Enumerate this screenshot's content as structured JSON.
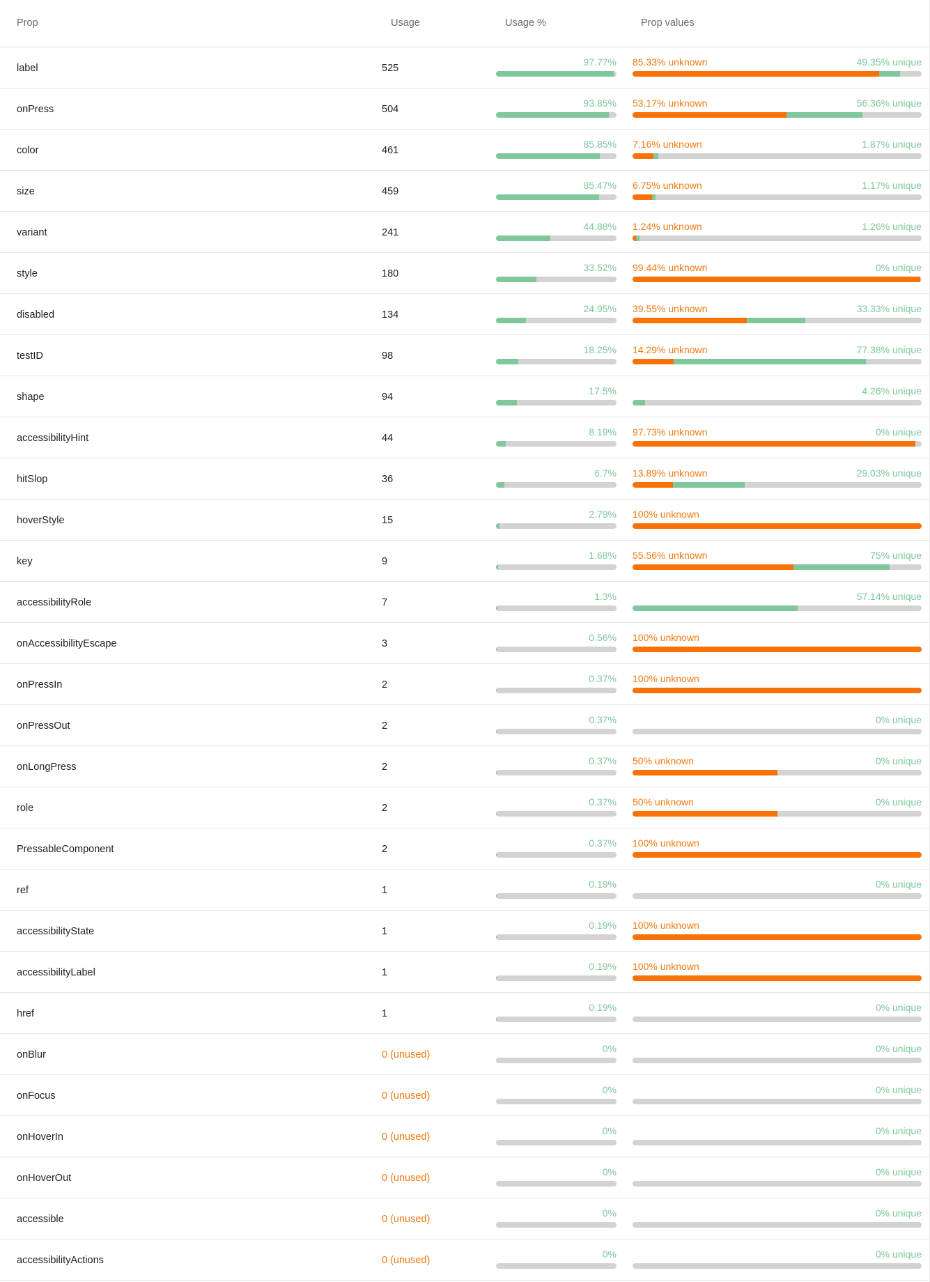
{
  "colors": {
    "usage_fill": "#80c89c",
    "usage_label": "#7cc89a",
    "unknown": "#f97107",
    "unique": "#80c89c",
    "track": "#d3d3d3",
    "unused_text": "#f47a11"
  },
  "header": {
    "prop": "Prop",
    "usage": "Usage",
    "usage_pct": "Usage %",
    "prop_values": "Prop values"
  },
  "rows": [
    {
      "name": "label",
      "usage": "525",
      "usage_pct": 97.77,
      "usage_pct_label": "97.77%",
      "unknown": 85.33,
      "unknown_label": "85.33% unknown",
      "unique": 49.35,
      "unique_label": "49.35% unique"
    },
    {
      "name": "onPress",
      "usage": "504",
      "usage_pct": 93.85,
      "usage_pct_label": "93.85%",
      "unknown": 53.17,
      "unknown_label": "53.17% unknown",
      "unique": 56.36,
      "unique_label": "56.36% unique"
    },
    {
      "name": "color",
      "usage": "461",
      "usage_pct": 85.85,
      "usage_pct_label": "85.85%",
      "unknown": 7.16,
      "unknown_label": "7.16% unknown",
      "unique": 1.87,
      "unique_label": "1.87% unique"
    },
    {
      "name": "size",
      "usage": "459",
      "usage_pct": 85.47,
      "usage_pct_label": "85.47%",
      "unknown": 6.75,
      "unknown_label": "6.75% unknown",
      "unique": 1.17,
      "unique_label": "1.17% unique"
    },
    {
      "name": "variant",
      "usage": "241",
      "usage_pct": 44.88,
      "usage_pct_label": "44.88%",
      "unknown": 1.24,
      "unknown_label": "1.24% unknown",
      "unique": 1.26,
      "unique_label": "1.26% unique"
    },
    {
      "name": "style",
      "usage": "180",
      "usage_pct": 33.52,
      "usage_pct_label": "33.52%",
      "unknown": 99.44,
      "unknown_label": "99.44% unknown",
      "unique": 0,
      "unique_label": "0% unique"
    },
    {
      "name": "disabled",
      "usage": "134",
      "usage_pct": 24.95,
      "usage_pct_label": "24.95%",
      "unknown": 39.55,
      "unknown_label": "39.55% unknown",
      "unique": 33.33,
      "unique_label": "33.33% unique"
    },
    {
      "name": "testID",
      "usage": "98",
      "usage_pct": 18.25,
      "usage_pct_label": "18.25%",
      "unknown": 14.29,
      "unknown_label": "14.29% unknown",
      "unique": 77.38,
      "unique_label": "77.38% unique"
    },
    {
      "name": "shape",
      "usage": "94",
      "usage_pct": 17.5,
      "usage_pct_label": "17.5%",
      "unknown": 0,
      "unknown_label": "",
      "unique": 4.26,
      "unique_label": "4.26% unique"
    },
    {
      "name": "accessibilityHint",
      "usage": "44",
      "usage_pct": 8.19,
      "usage_pct_label": "8.19%",
      "unknown": 97.73,
      "unknown_label": "97.73% unknown",
      "unique": 0,
      "unique_label": "0% unique"
    },
    {
      "name": "hitSlop",
      "usage": "36",
      "usage_pct": 6.7,
      "usage_pct_label": "6.7%",
      "unknown": 13.89,
      "unknown_label": "13.89% unknown",
      "unique": 29.03,
      "unique_label": "29.03% unique"
    },
    {
      "name": "hoverStyle",
      "usage": "15",
      "usage_pct": 2.79,
      "usage_pct_label": "2.79%",
      "unknown": 100,
      "unknown_label": "100% unknown",
      "unique": 0,
      "unique_label": ""
    },
    {
      "name": "key",
      "usage": "9",
      "usage_pct": 1.68,
      "usage_pct_label": "1.68%",
      "unknown": 55.56,
      "unknown_label": "55.56% unknown",
      "unique": 75,
      "unique_label": "75% unique"
    },
    {
      "name": "accessibilityRole",
      "usage": "7",
      "usage_pct": 1.3,
      "usage_pct_label": "1.3%",
      "unknown": 0,
      "unknown_label": "",
      "unique": 57.14,
      "unique_label": "57.14% unique"
    },
    {
      "name": "onAccessibilityEscape",
      "usage": "3",
      "usage_pct": 0.56,
      "usage_pct_label": "0.56%",
      "unknown": 100,
      "unknown_label": "100% unknown",
      "unique": 0,
      "unique_label": ""
    },
    {
      "name": "onPressIn",
      "usage": "2",
      "usage_pct": 0.37,
      "usage_pct_label": "0.37%",
      "unknown": 100,
      "unknown_label": "100% unknown",
      "unique": 0,
      "unique_label": ""
    },
    {
      "name": "onPressOut",
      "usage": "2",
      "usage_pct": 0.37,
      "usage_pct_label": "0.37%",
      "unknown": 0,
      "unknown_label": "",
      "unique": 0,
      "unique_label": "0% unique"
    },
    {
      "name": "onLongPress",
      "usage": "2",
      "usage_pct": 0.37,
      "usage_pct_label": "0.37%",
      "unknown": 50,
      "unknown_label": "50% unknown",
      "unique": 0,
      "unique_label": "0% unique"
    },
    {
      "name": "role",
      "usage": "2",
      "usage_pct": 0.37,
      "usage_pct_label": "0.37%",
      "unknown": 50,
      "unknown_label": "50% unknown",
      "unique": 0,
      "unique_label": "0% unique"
    },
    {
      "name": "PressableComponent",
      "usage": "2",
      "usage_pct": 0.37,
      "usage_pct_label": "0.37%",
      "unknown": 100,
      "unknown_label": "100% unknown",
      "unique": 0,
      "unique_label": ""
    },
    {
      "name": "ref",
      "usage": "1",
      "usage_pct": 0.19,
      "usage_pct_label": "0.19%",
      "unknown": 0,
      "unknown_label": "",
      "unique": 0,
      "unique_label": "0% unique"
    },
    {
      "name": "accessibilityState",
      "usage": "1",
      "usage_pct": 0.19,
      "usage_pct_label": "0.19%",
      "unknown": 100,
      "unknown_label": "100% unknown",
      "unique": 0,
      "unique_label": ""
    },
    {
      "name": "accessibilityLabel",
      "usage": "1",
      "usage_pct": 0.19,
      "usage_pct_label": "0.19%",
      "unknown": 100,
      "unknown_label": "100% unknown",
      "unique": 0,
      "unique_label": ""
    },
    {
      "name": "href",
      "usage": "1",
      "usage_pct": 0.19,
      "usage_pct_label": "0.19%",
      "unknown": 0,
      "unknown_label": "",
      "unique": 0,
      "unique_label": "0% unique"
    },
    {
      "name": "onBlur",
      "usage": "0 (unused)",
      "unused": true,
      "usage_pct": 0,
      "usage_pct_label": "0%",
      "unknown": 0,
      "unknown_label": "",
      "unique": 0,
      "unique_label": "0% unique"
    },
    {
      "name": "onFocus",
      "usage": "0 (unused)",
      "unused": true,
      "usage_pct": 0,
      "usage_pct_label": "0%",
      "unknown": 0,
      "unknown_label": "",
      "unique": 0,
      "unique_label": "0% unique"
    },
    {
      "name": "onHoverIn",
      "usage": "0 (unused)",
      "unused": true,
      "usage_pct": 0,
      "usage_pct_label": "0%",
      "unknown": 0,
      "unknown_label": "",
      "unique": 0,
      "unique_label": "0% unique"
    },
    {
      "name": "onHoverOut",
      "usage": "0 (unused)",
      "unused": true,
      "usage_pct": 0,
      "usage_pct_label": "0%",
      "unknown": 0,
      "unknown_label": "",
      "unique": 0,
      "unique_label": "0% unique"
    },
    {
      "name": "accessible",
      "usage": "0 (unused)",
      "unused": true,
      "usage_pct": 0,
      "usage_pct_label": "0%",
      "unknown": 0,
      "unknown_label": "",
      "unique": 0,
      "unique_label": "0% unique"
    },
    {
      "name": "accessibilityActions",
      "usage": "0 (unused)",
      "unused": true,
      "usage_pct": 0,
      "usage_pct_label": "0%",
      "unknown": 0,
      "unknown_label": "",
      "unique": 0,
      "unique_label": "0% unique"
    }
  ]
}
